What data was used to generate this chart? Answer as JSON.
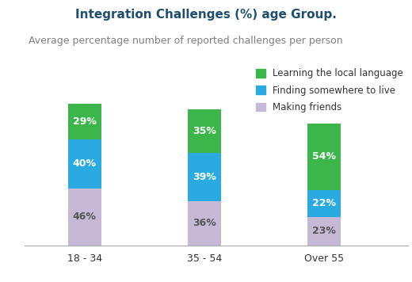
{
  "title": "Integration Challenges (%) age Group.",
  "subtitle": "Average percentage number of reported challenges per person",
  "categories": [
    "18 - 34",
    "35 - 54",
    "Over 55"
  ],
  "series": {
    "Making friends": [
      46,
      36,
      23
    ],
    "Finding somewhere to live": [
      40,
      39,
      22
    ],
    "Learning the local language": [
      29,
      35,
      54
    ]
  },
  "colors": {
    "Making friends": "#c5b9d6",
    "Finding somewhere to live": "#29abe2",
    "Learning the local language": "#3cb54a"
  },
  "bar_width": 0.28,
  "title_color": "#1f4e6e",
  "subtitle_color": "#808080",
  "label_color_white": "#ffffff",
  "label_color_dark": "#555555",
  "title_fontsize": 11,
  "subtitle_fontsize": 9,
  "tick_fontsize": 9,
  "legend_fontsize": 8.5,
  "bar_label_fontsize": 9,
  "background_color": "#ffffff",
  "ylim": [
    0,
    160
  ],
  "legend_entries": [
    "Learning the local language",
    "Finding somewhere to live",
    "Making friends"
  ]
}
